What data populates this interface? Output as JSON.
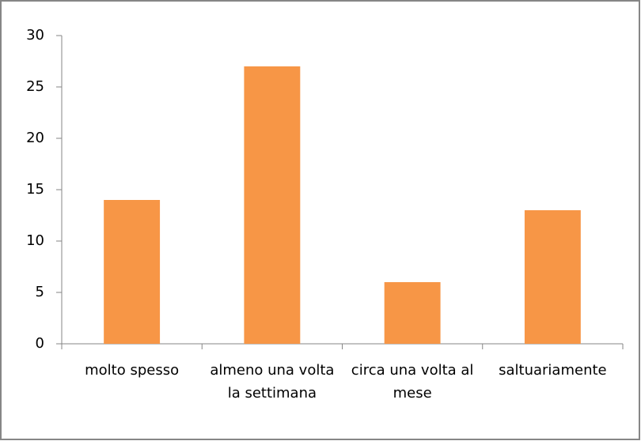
{
  "chart_data": {
    "type": "bar",
    "categories": [
      "molto spesso",
      "almeno una volta la settimana",
      "circa una volta al mese",
      "saltuariamente"
    ],
    "values": [
      14,
      27,
      6,
      13
    ],
    "color": "#f79646",
    "ylim": [
      0,
      30
    ],
    "yticks": [
      0,
      5,
      10,
      15,
      20,
      25,
      30
    ],
    "grid": false
  }
}
